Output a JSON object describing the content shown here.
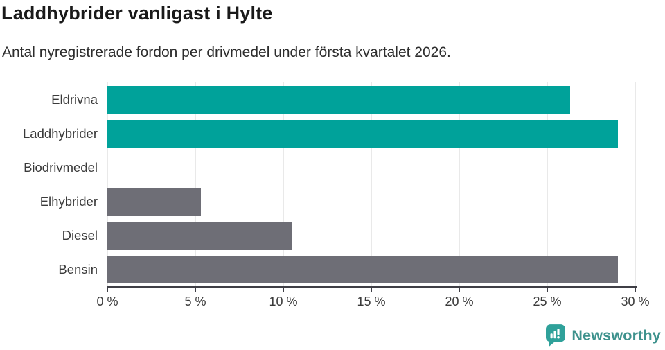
{
  "page": {
    "title": "Laddhybrider vanligast i Hylte",
    "subtitle": "Antal nyregistrerade fordon per drivmedel under första kvartalet 2026."
  },
  "chart_data": {
    "type": "bar",
    "orientation": "horizontal",
    "title": "Laddhybrider vanligast i Hylte",
    "subtitle": "Antal nyregistrerade fordon per drivmedel under första kvartalet 2026.",
    "categories": [
      "Eldrivna",
      "Laddhybrider",
      "Biodrivmedel",
      "Elhybrider",
      "Diesel",
      "Bensin"
    ],
    "values": [
      26.3,
      29,
      0,
      5.3,
      10.5,
      29
    ],
    "unit": "%",
    "xlabel": "",
    "ylabel": "",
    "xlim": [
      0,
      30
    ],
    "x_ticks": [
      0,
      5,
      10,
      15,
      20,
      25,
      30
    ],
    "x_tick_labels": [
      "0 %",
      "5 %",
      "10 %",
      "15 %",
      "20 %",
      "25 %",
      "30 %"
    ],
    "bar_colors": [
      "#00a29a",
      "#00a29a",
      "#6e6e76",
      "#6e6e76",
      "#6e6e76",
      "#6e6e76"
    ],
    "grid": true,
    "legend": false
  },
  "colors": {
    "highlight": "#00a29a",
    "default_bar": "#6e6e76",
    "gridline": "#e9e9e9",
    "axis": "#3f3f46",
    "tick_text": "#3a3a3a"
  },
  "branding": {
    "logo_text": "Newsworthy",
    "logo_color": "#3e928d",
    "icon_color": "#2fa19a",
    "icon_name": "newsworthy-bar-chart-bubble-icon"
  }
}
